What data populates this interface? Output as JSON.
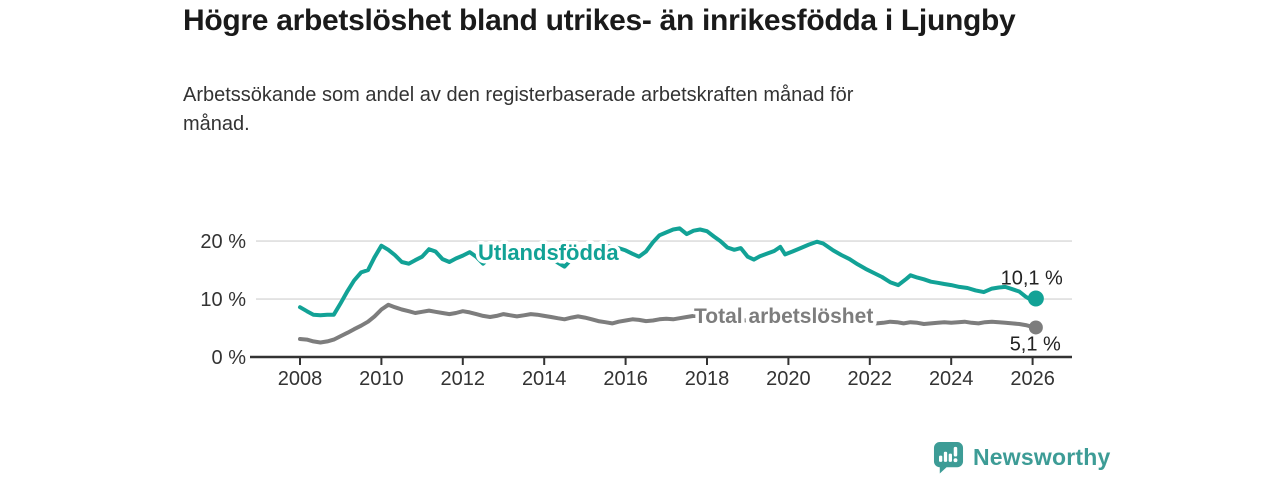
{
  "header": {
    "title": "Högre arbetslöshet bland utrikes- än inrikesfödda i Ljungby",
    "subtitle": "Arbetssökande som andel av den registerbaserade arbetskraften månad för månad."
  },
  "footer": {
    "brand": "Newsworthy",
    "logo_icon": "bar-chart-speech-bubble-icon"
  },
  "colors": {
    "accent_teal": "#12a296",
    "series_gray": "#7d7d7d",
    "logo_teal": "#3d9c96",
    "grid": "#d8d8d8",
    "axis": "#333333",
    "text_dark": "#1a1a1a",
    "text_body": "#333333",
    "end_label_text": "#222222"
  },
  "chart_data": {
    "type": "line",
    "title": "Högre arbetslöshet bland utrikes- än inrikesfödda i Ljungby",
    "subtitle": "Arbetssökande som andel av den registerbaserade arbetskraften månad för månad.",
    "unit": "%",
    "grid": "horizontal-only",
    "legend": "inline-labels",
    "xlim": [
      2006.8,
      2027.0
    ],
    "ylim": [
      0,
      24
    ],
    "x_ticks": [
      2008,
      2010,
      2012,
      2014,
      2016,
      2018,
      2020,
      2022,
      2024,
      2026
    ],
    "y_ticks": [
      {
        "value": 0,
        "label": "0 %"
      },
      {
        "value": 10,
        "label": "10 %"
      },
      {
        "value": 20,
        "label": "20 %"
      }
    ],
    "series": [
      {
        "name": "Utlandsfödda",
        "color": "#12a296",
        "end_label": "10,1 %",
        "end_value": 10.1,
        "points": [
          [
            2008.0,
            8.6
          ],
          [
            2008.17,
            7.9
          ],
          [
            2008.33,
            7.3
          ],
          [
            2008.5,
            7.2
          ],
          [
            2008.67,
            7.3
          ],
          [
            2008.83,
            7.3
          ],
          [
            2009.0,
            9.3
          ],
          [
            2009.17,
            11.4
          ],
          [
            2009.33,
            13.2
          ],
          [
            2009.5,
            14.6
          ],
          [
            2009.67,
            15.0
          ],
          [
            2009.83,
            17.2
          ],
          [
            2010.0,
            19.2
          ],
          [
            2010.17,
            18.5
          ],
          [
            2010.33,
            17.6
          ],
          [
            2010.5,
            16.4
          ],
          [
            2010.67,
            16.1
          ],
          [
            2010.83,
            16.7
          ],
          [
            2011.0,
            17.3
          ],
          [
            2011.17,
            18.6
          ],
          [
            2011.33,
            18.2
          ],
          [
            2011.5,
            16.9
          ],
          [
            2011.67,
            16.4
          ],
          [
            2011.83,
            17.0
          ],
          [
            2012.0,
            17.5
          ],
          [
            2012.17,
            18.1
          ],
          [
            2012.33,
            17.3
          ],
          [
            2012.5,
            16.1
          ],
          [
            2012.67,
            17.2
          ],
          [
            2012.83,
            17.7
          ],
          [
            2013.0,
            18.0
          ],
          [
            2013.17,
            17.7
          ],
          [
            2013.33,
            17.9
          ],
          [
            2013.5,
            17.6
          ],
          [
            2013.67,
            17.8
          ],
          [
            2013.83,
            17.5
          ],
          [
            2014.0,
            17.6
          ],
          [
            2014.17,
            17.1
          ],
          [
            2014.33,
            16.3
          ],
          [
            2014.5,
            15.6
          ],
          [
            2014.67,
            16.9
          ],
          [
            2014.83,
            17.4
          ],
          [
            2015.0,
            17.8
          ],
          [
            2015.17,
            18.3
          ],
          [
            2015.33,
            18.9
          ],
          [
            2015.5,
            19.2
          ],
          [
            2015.67,
            19.0
          ],
          [
            2015.83,
            18.8
          ],
          [
            2016.0,
            18.4
          ],
          [
            2016.17,
            17.8
          ],
          [
            2016.33,
            17.3
          ],
          [
            2016.5,
            18.2
          ],
          [
            2016.67,
            19.8
          ],
          [
            2016.83,
            21.0
          ],
          [
            2017.0,
            21.5
          ],
          [
            2017.17,
            22.0
          ],
          [
            2017.33,
            22.2
          ],
          [
            2017.5,
            21.2
          ],
          [
            2017.67,
            21.8
          ],
          [
            2017.83,
            22.0
          ],
          [
            2018.0,
            21.7
          ],
          [
            2018.17,
            20.8
          ],
          [
            2018.33,
            20.0
          ],
          [
            2018.5,
            18.9
          ],
          [
            2018.67,
            18.5
          ],
          [
            2018.83,
            18.8
          ],
          [
            2019.0,
            17.3
          ],
          [
            2019.15,
            16.8
          ],
          [
            2019.3,
            17.4
          ],
          [
            2019.5,
            17.9
          ],
          [
            2019.65,
            18.3
          ],
          [
            2019.8,
            19.0
          ],
          [
            2019.92,
            17.7
          ],
          [
            2020.1,
            18.2
          ],
          [
            2020.3,
            18.8
          ],
          [
            2020.5,
            19.4
          ],
          [
            2020.7,
            19.9
          ],
          [
            2020.85,
            19.6
          ],
          [
            2021.1,
            18.4
          ],
          [
            2021.3,
            17.6
          ],
          [
            2021.5,
            16.9
          ],
          [
            2021.7,
            16.0
          ],
          [
            2021.9,
            15.2
          ],
          [
            2022.1,
            14.5
          ],
          [
            2022.3,
            13.8
          ],
          [
            2022.5,
            12.9
          ],
          [
            2022.7,
            12.4
          ],
          [
            2022.9,
            13.5
          ],
          [
            2023.0,
            14.1
          ],
          [
            2023.17,
            13.7
          ],
          [
            2023.33,
            13.4
          ],
          [
            2023.5,
            13.0
          ],
          [
            2023.67,
            12.8
          ],
          [
            2023.83,
            12.6
          ],
          [
            2024.0,
            12.4
          ],
          [
            2024.2,
            12.1
          ],
          [
            2024.4,
            11.9
          ],
          [
            2024.6,
            11.5
          ],
          [
            2024.8,
            11.2
          ],
          [
            2025.0,
            11.8
          ],
          [
            2025.17,
            12.0
          ],
          [
            2025.33,
            12.1
          ],
          [
            2025.5,
            11.7
          ],
          [
            2025.67,
            11.3
          ],
          [
            2025.83,
            10.4
          ],
          [
            2025.95,
            9.9
          ],
          [
            2026.08,
            10.1
          ]
        ]
      },
      {
        "name": "Total arbetslöshet",
        "color": "#7d7d7d",
        "end_label": "5,1 %",
        "end_value": 5.1,
        "points": [
          [
            2008.0,
            3.1
          ],
          [
            2008.17,
            3.0
          ],
          [
            2008.33,
            2.7
          ],
          [
            2008.5,
            2.5
          ],
          [
            2008.67,
            2.7
          ],
          [
            2008.83,
            3.0
          ],
          [
            2009.0,
            3.6
          ],
          [
            2009.17,
            4.2
          ],
          [
            2009.33,
            4.8
          ],
          [
            2009.5,
            5.4
          ],
          [
            2009.67,
            6.1
          ],
          [
            2009.83,
            7.0
          ],
          [
            2010.0,
            8.2
          ],
          [
            2010.17,
            9.0
          ],
          [
            2010.33,
            8.6
          ],
          [
            2010.5,
            8.2
          ],
          [
            2010.67,
            7.9
          ],
          [
            2010.83,
            7.6
          ],
          [
            2011.0,
            7.8
          ],
          [
            2011.17,
            8.0
          ],
          [
            2011.33,
            7.8
          ],
          [
            2011.5,
            7.6
          ],
          [
            2011.67,
            7.4
          ],
          [
            2011.83,
            7.6
          ],
          [
            2012.0,
            7.9
          ],
          [
            2012.17,
            7.7
          ],
          [
            2012.33,
            7.4
          ],
          [
            2012.5,
            7.1
          ],
          [
            2012.67,
            6.9
          ],
          [
            2012.83,
            7.1
          ],
          [
            2013.0,
            7.4
          ],
          [
            2013.17,
            7.2
          ],
          [
            2013.33,
            7.0
          ],
          [
            2013.5,
            7.2
          ],
          [
            2013.67,
            7.4
          ],
          [
            2013.83,
            7.3
          ],
          [
            2014.0,
            7.1
          ],
          [
            2014.17,
            6.9
          ],
          [
            2014.33,
            6.7
          ],
          [
            2014.5,
            6.5
          ],
          [
            2014.67,
            6.8
          ],
          [
            2014.83,
            7.0
          ],
          [
            2015.0,
            6.8
          ],
          [
            2015.17,
            6.5
          ],
          [
            2015.33,
            6.2
          ],
          [
            2015.5,
            6.0
          ],
          [
            2015.67,
            5.8
          ],
          [
            2015.83,
            6.1
          ],
          [
            2016.0,
            6.3
          ],
          [
            2016.17,
            6.5
          ],
          [
            2016.33,
            6.4
          ],
          [
            2016.5,
            6.2
          ],
          [
            2016.67,
            6.3
          ],
          [
            2016.83,
            6.5
          ],
          [
            2017.0,
            6.6
          ],
          [
            2017.17,
            6.5
          ],
          [
            2017.33,
            6.7
          ],
          [
            2017.5,
            6.9
          ],
          [
            2017.67,
            7.1
          ],
          [
            2017.83,
            7.0
          ],
          [
            2018.0,
            6.8
          ],
          [
            2018.25,
            6.6
          ],
          [
            2018.5,
            6.5
          ],
          [
            2018.75,
            6.4
          ],
          [
            2019.0,
            6.3
          ],
          [
            2019.25,
            6.2
          ],
          [
            2019.5,
            6.2
          ],
          [
            2019.75,
            6.4
          ],
          [
            2020.0,
            6.5
          ],
          [
            2020.25,
            6.6
          ],
          [
            2020.5,
            6.8
          ],
          [
            2020.75,
            6.6
          ],
          [
            2021.0,
            6.4
          ],
          [
            2021.25,
            6.3
          ],
          [
            2021.5,
            6.1
          ],
          [
            2021.75,
            6.0
          ],
          [
            2022.0,
            5.9
          ],
          [
            2022.17,
            5.8
          ],
          [
            2022.33,
            5.9
          ],
          [
            2022.5,
            6.1
          ],
          [
            2022.67,
            6.0
          ],
          [
            2022.83,
            5.8
          ],
          [
            2023.0,
            6.0
          ],
          [
            2023.17,
            5.9
          ],
          [
            2023.33,
            5.7
          ],
          [
            2023.5,
            5.8
          ],
          [
            2023.67,
            5.9
          ],
          [
            2023.83,
            6.0
          ],
          [
            2024.0,
            5.9
          ],
          [
            2024.17,
            6.0
          ],
          [
            2024.33,
            6.1
          ],
          [
            2024.5,
            5.9
          ],
          [
            2024.67,
            5.8
          ],
          [
            2024.83,
            6.0
          ],
          [
            2025.0,
            6.1
          ],
          [
            2025.17,
            6.0
          ],
          [
            2025.33,
            5.9
          ],
          [
            2025.5,
            5.8
          ],
          [
            2025.67,
            5.7
          ],
          [
            2025.83,
            5.5
          ],
          [
            2026.0,
            5.2
          ],
          [
            2026.08,
            5.1
          ]
        ]
      }
    ]
  }
}
